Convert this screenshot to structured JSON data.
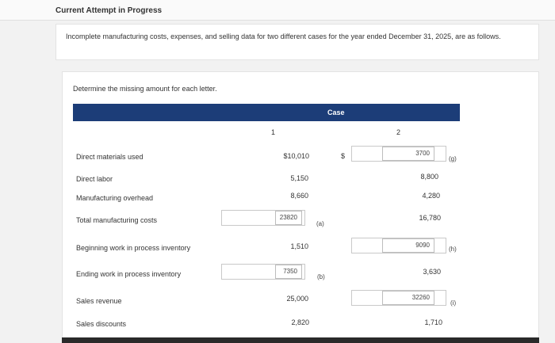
{
  "header": {
    "title": "Current Attempt in Progress"
  },
  "intro": "Incomplete manufacturing costs, expenses, and selling data for two different cases for the year ended December 31, 2025, are as follows.",
  "task": "Determine the missing amount for each letter.",
  "table": {
    "group_header": "Case",
    "col1_header": "1",
    "col2_header": "2",
    "dollar_sign": "$",
    "rows": {
      "direct_materials": {
        "label": "Direct materials used",
        "c1": "$10,010",
        "c2_input": "3700",
        "c2_letter": "(g)"
      },
      "direct_labor": {
        "label": "Direct labor",
        "c1": "5,150",
        "c2": "8,800"
      },
      "manufacturing_overhead": {
        "label": "Manufacturing overhead",
        "c1": "8,660",
        "c2": "4,280"
      },
      "total_manufacturing": {
        "label": "Total manufacturing costs",
        "c1_input": "23820",
        "c1_letter": "(a)",
        "c2": "16,780"
      },
      "beginning_wip": {
        "label": "Beginning work in process inventory",
        "c1": "1,510",
        "c2_input": "9090",
        "c2_letter": "(h)"
      },
      "ending_wip": {
        "label": "Ending work in process inventory",
        "c1_input": "7350",
        "c1_letter": "(b)",
        "c2": "3,630"
      },
      "sales_revenue": {
        "label": "Sales revenue",
        "c1": "25,000",
        "c2_input": "32260",
        "c2_letter": "(i)"
      },
      "sales_discounts": {
        "label": "Sales discounts",
        "c1": "2,820",
        "c2": "1,710"
      }
    }
  }
}
